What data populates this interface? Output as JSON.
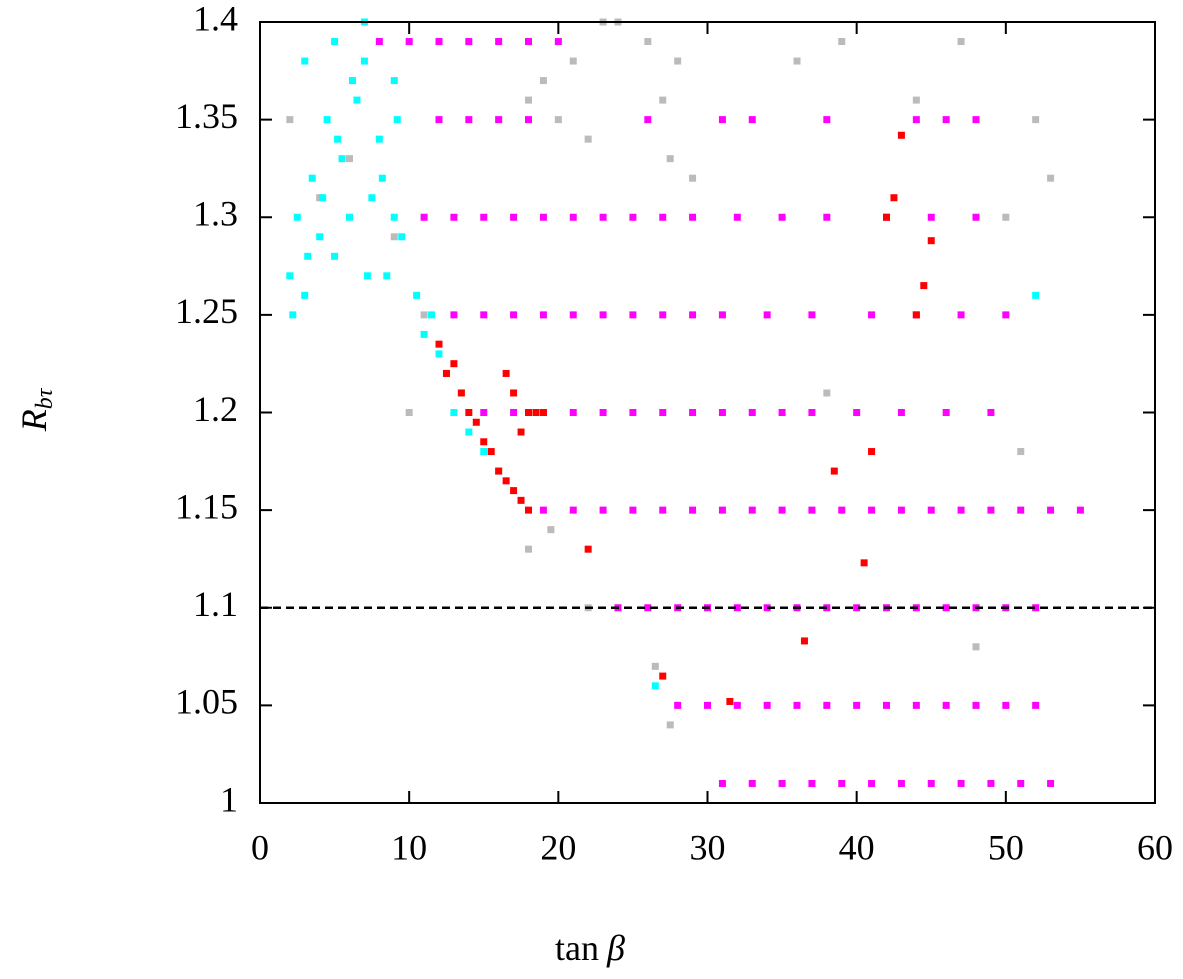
{
  "chart_data": {
    "type": "scatter",
    "xlabel": {
      "main": "tan",
      "symbol": "β"
    },
    "ylabel": {
      "main": "R",
      "sub": "bτ"
    },
    "xlim": [
      0,
      60
    ],
    "ylim": [
      1,
      1.4
    ],
    "xticks": [
      0,
      10,
      20,
      30,
      40,
      50,
      60
    ],
    "yticks": [
      1,
      1.05,
      1.1,
      1.15,
      1.2,
      1.25,
      1.3,
      1.35,
      1.4
    ],
    "hline": 1.1,
    "series": [
      {
        "color": "#bbbbbb",
        "x": [
          2,
          4,
          6,
          9,
          10,
          11,
          18,
          19,
          20,
          21,
          22,
          23,
          26,
          27,
          28,
          27.5,
          29,
          24,
          36,
          39,
          44,
          47,
          50,
          52,
          53,
          18,
          19.5,
          22,
          26.5,
          27.5,
          38,
          48,
          51
        ],
        "y": [
          1.35,
          1.31,
          1.33,
          1.29,
          1.2,
          1.25,
          1.36,
          1.37,
          1.35,
          1.38,
          1.34,
          1.4,
          1.39,
          1.36,
          1.38,
          1.33,
          1.32,
          1.4,
          1.38,
          1.39,
          1.36,
          1.39,
          1.3,
          1.35,
          1.32,
          1.13,
          1.14,
          1.1,
          1.07,
          1.04,
          1.21,
          1.08,
          1.18
        ]
      },
      {
        "color": "#00ffff",
        "x": [
          2,
          2.5,
          3,
          3.5,
          4,
          4.5,
          5,
          5.5,
          6,
          6.5,
          7,
          7.5,
          8,
          8.5,
          9,
          9.5,
          2.2,
          3.2,
          4.2,
          5.2,
          6.2,
          7.2,
          8.2,
          9.2,
          3,
          5,
          7,
          9,
          10.5,
          11,
          11.5,
          12,
          12.5,
          13,
          13.5,
          14,
          15,
          16,
          26.5,
          52
        ],
        "y": [
          1.27,
          1.3,
          1.26,
          1.32,
          1.29,
          1.35,
          1.28,
          1.33,
          1.3,
          1.36,
          1.38,
          1.31,
          1.34,
          1.27,
          1.37,
          1.29,
          1.25,
          1.28,
          1.31,
          1.34,
          1.37,
          1.27,
          1.32,
          1.35,
          1.38,
          1.39,
          1.4,
          1.3,
          1.26,
          1.24,
          1.25,
          1.23,
          1.22,
          1.2,
          1.21,
          1.19,
          1.18,
          1.17,
          1.06,
          1.26
        ]
      },
      {
        "color": "#ff00ff",
        "x": [
          8,
          10,
          12,
          14,
          16,
          18,
          20,
          12,
          14,
          16,
          18,
          26,
          31,
          33,
          38,
          44,
          46,
          48,
          11,
          13,
          15,
          17,
          19,
          21,
          23,
          25,
          27,
          29,
          32,
          35,
          38,
          42,
          45,
          48,
          13,
          15,
          17,
          19,
          21,
          23,
          25,
          27,
          29,
          31,
          34,
          37,
          41,
          44,
          47,
          50,
          15,
          17,
          19,
          21,
          23,
          25,
          27,
          29,
          31,
          33,
          35,
          37,
          40,
          43,
          46,
          49,
          19,
          21,
          23,
          25,
          27,
          29,
          31,
          33,
          35,
          37,
          39,
          41,
          43,
          45,
          47,
          49,
          51,
          53,
          55,
          24,
          26,
          28,
          30,
          32,
          34,
          36,
          38,
          40,
          42,
          44,
          46,
          48,
          50,
          52,
          28,
          30,
          32,
          34,
          36,
          38,
          40,
          42,
          44,
          46,
          48,
          50,
          52,
          31,
          33,
          35,
          37,
          39,
          41,
          43,
          45,
          47,
          49,
          51,
          53
        ],
        "y": [
          1.39,
          1.39,
          1.39,
          1.39,
          1.39,
          1.39,
          1.39,
          1.35,
          1.35,
          1.35,
          1.35,
          1.35,
          1.35,
          1.35,
          1.35,
          1.35,
          1.35,
          1.35,
          1.3,
          1.3,
          1.3,
          1.3,
          1.3,
          1.3,
          1.3,
          1.3,
          1.3,
          1.3,
          1.3,
          1.3,
          1.3,
          1.3,
          1.3,
          1.3,
          1.25,
          1.25,
          1.25,
          1.25,
          1.25,
          1.25,
          1.25,
          1.25,
          1.25,
          1.25,
          1.25,
          1.25,
          1.25,
          1.25,
          1.25,
          1.25,
          1.2,
          1.2,
          1.2,
          1.2,
          1.2,
          1.2,
          1.2,
          1.2,
          1.2,
          1.2,
          1.2,
          1.2,
          1.2,
          1.2,
          1.2,
          1.2,
          1.15,
          1.15,
          1.15,
          1.15,
          1.15,
          1.15,
          1.15,
          1.15,
          1.15,
          1.15,
          1.15,
          1.15,
          1.15,
          1.15,
          1.15,
          1.15,
          1.15,
          1.15,
          1.15,
          1.1,
          1.1,
          1.1,
          1.1,
          1.1,
          1.1,
          1.1,
          1.1,
          1.1,
          1.1,
          1.1,
          1.1,
          1.1,
          1.1,
          1.1,
          1.05,
          1.05,
          1.05,
          1.05,
          1.05,
          1.05,
          1.05,
          1.05,
          1.05,
          1.05,
          1.05,
          1.05,
          1.05,
          1.01,
          1.01,
          1.01,
          1.01,
          1.01,
          1.01,
          1.01,
          1.01,
          1.01,
          1.01,
          1.01,
          1.01
        ]
      },
      {
        "color": "#ff0000",
        "x": [
          12,
          12.5,
          13,
          13.5,
          14,
          14.5,
          15,
          15.5,
          16,
          16.5,
          17,
          17.5,
          18,
          18.5,
          16.5,
          17,
          17.5,
          18,
          19,
          22,
          27,
          31.5,
          36.5,
          40.5,
          42,
          42.5,
          43,
          44,
          44.5,
          45,
          41,
          38.5
        ],
        "y": [
          1.235,
          1.22,
          1.225,
          1.21,
          1.2,
          1.195,
          1.185,
          1.18,
          1.17,
          1.165,
          1.16,
          1.155,
          1.15,
          1.2,
          1.22,
          1.21,
          1.19,
          1.2,
          1.2,
          1.13,
          1.065,
          1.052,
          1.083,
          1.123,
          1.3,
          1.31,
          1.342,
          1.25,
          1.265,
          1.288,
          1.18,
          1.17
        ]
      }
    ]
  }
}
